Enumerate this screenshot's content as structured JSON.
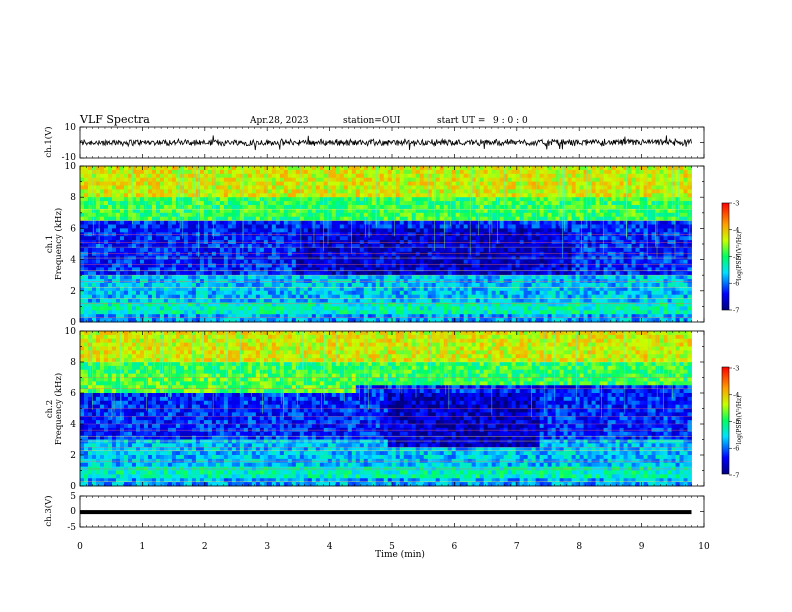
{
  "header": {
    "title": "VLF Spectra",
    "date": "Apr.28, 2023",
    "station": "station=OUI",
    "start_ut_label": "start UT =",
    "start_ut_value": "9 : 0 : 0"
  },
  "chart_data": [
    {
      "type": "line",
      "id": "ch1-waveform",
      "ylabel": "ch.1(V)",
      "ylim": [
        -10,
        10
      ],
      "yticks": [
        "10",
        "-10"
      ],
      "xlim": [
        0,
        10
      ],
      "trace_color": "#000000",
      "trace_approx_range": [
        -2.5,
        2.5
      ]
    },
    {
      "type": "heatmap",
      "id": "ch1-spectrogram",
      "ylabel": "ch.1 Frequency (kHz)",
      "ylim": [
        0,
        10
      ],
      "yticks": [
        "0",
        "2",
        "4",
        "6",
        "8",
        "10"
      ],
      "xlim": [
        0,
        10
      ],
      "data_x_end": 9.8,
      "colorbar": {
        "label": "log(PSD)(V²/Hz)",
        "range": [
          -7,
          -3
        ],
        "ticks": [
          "-3",
          "-4",
          "-5",
          "-6",
          "-7"
        ]
      }
    },
    {
      "type": "heatmap",
      "id": "ch2-spectrogram",
      "ylabel": "ch.2 Frequency (kHz)",
      "ylim": [
        0,
        10
      ],
      "yticks": [
        "0",
        "2",
        "4",
        "6",
        "8",
        "10"
      ],
      "xlim": [
        0,
        10
      ],
      "data_x_end": 9.8,
      "colorbar": {
        "label": "log(PSD)(V²/Hz)",
        "range": [
          -7,
          -3
        ],
        "ticks": [
          "-3",
          "-4",
          "-5",
          "-6",
          "-7"
        ]
      }
    },
    {
      "type": "line",
      "id": "ch3-waveform",
      "ylabel": "ch.3(V)",
      "ylim": [
        -5,
        5
      ],
      "yticks": [
        "5",
        "0",
        "-5"
      ],
      "xlim": [
        0,
        10
      ],
      "trace_color": "#000000",
      "trace_value": -0.2
    }
  ],
  "xaxis": {
    "label": "Time (min)",
    "ticks": [
      "0",
      "1",
      "2",
      "3",
      "4",
      "5",
      "6",
      "7",
      "8",
      "9",
      "10"
    ]
  }
}
